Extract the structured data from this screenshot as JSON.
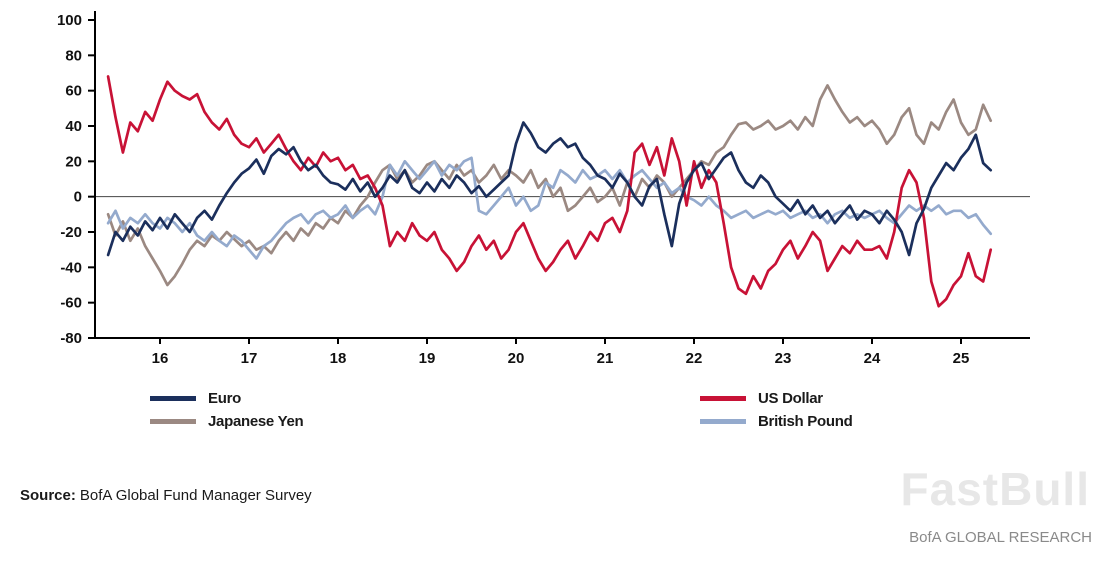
{
  "chart_data": {
    "type": "line",
    "title": "",
    "xlabel": "",
    "ylabel": "",
    "grid": false,
    "zero_line": true,
    "legend_position": "bottom",
    "x_start": 2015.4167,
    "x_step": 0.083333,
    "x_axis": {
      "tick_values": [
        2016,
        2017,
        2018,
        2019,
        2020,
        2021,
        2022,
        2023,
        2024,
        2025
      ],
      "tick_labels": [
        "16",
        "17",
        "18",
        "19",
        "20",
        "21",
        "22",
        "23",
        "24",
        "25"
      ]
    },
    "y_axis": {
      "min": -80,
      "max": 100,
      "ticks": [
        100,
        80,
        60,
        40,
        20,
        0,
        -20,
        -40,
        -60,
        -80
      ]
    },
    "series": [
      {
        "name": "Euro",
        "color": "#1b2f5c",
        "values": [
          -33,
          -20,
          -25,
          -17,
          -22,
          -14,
          -19,
          -12,
          -18,
          -10,
          -15,
          -20,
          -12,
          -8,
          -13,
          -5,
          2,
          8,
          13,
          16,
          21,
          13,
          23,
          27,
          24,
          28,
          20,
          15,
          18,
          12,
          8,
          7,
          4,
          10,
          3,
          8,
          0,
          5,
          12,
          8,
          15,
          5,
          2,
          8,
          3,
          10,
          5,
          12,
          8,
          2,
          6,
          0,
          4,
          8,
          12,
          30,
          42,
          36,
          28,
          25,
          30,
          33,
          28,
          30,
          22,
          18,
          12,
          10,
          5,
          13,
          8,
          0,
          -5,
          6,
          10,
          -10,
          -28,
          -4,
          8,
          15,
          19,
          10,
          16,
          22,
          25,
          15,
          8,
          5,
          12,
          8,
          0,
          -4,
          -8,
          -2,
          -10,
          -5,
          -12,
          -8,
          -15,
          -10,
          -5,
          -13,
          -8,
          -10,
          -15,
          -8,
          -13,
          -20,
          -33,
          -15,
          -7,
          5,
          12,
          19,
          15,
          22,
          27,
          35,
          19,
          15
        ]
      },
      {
        "name": "US Dollar",
        "color": "#c81236",
        "values": [
          68,
          45,
          25,
          42,
          37,
          48,
          43,
          55,
          65,
          60,
          57,
          55,
          58,
          48,
          42,
          38,
          44,
          35,
          30,
          28,
          33,
          25,
          30,
          35,
          27,
          20,
          15,
          22,
          17,
          25,
          20,
          22,
          15,
          18,
          10,
          12,
          5,
          -5,
          -28,
          -20,
          -25,
          -15,
          -22,
          -25,
          -20,
          -30,
          -35,
          -42,
          -37,
          -28,
          -22,
          -30,
          -25,
          -35,
          -30,
          -20,
          -15,
          -25,
          -35,
          -42,
          -37,
          -30,
          -25,
          -35,
          -28,
          -20,
          -25,
          -15,
          -12,
          -20,
          -8,
          25,
          30,
          18,
          28,
          12,
          33,
          20,
          -5,
          20,
          5,
          15,
          8,
          -15,
          -40,
          -52,
          -55,
          -45,
          -52,
          -42,
          -38,
          -30,
          -25,
          -35,
          -28,
          -20,
          -25,
          -42,
          -35,
          -28,
          -32,
          -25,
          -30,
          -30,
          -28,
          -35,
          -20,
          5,
          15,
          8,
          -12,
          -48,
          -62,
          -58,
          -50,
          -45,
          -32,
          -45,
          -48,
          -30
        ]
      },
      {
        "name": "Japanese Yen",
        "color": "#9b8982",
        "values": [
          -10,
          -22,
          -14,
          -25,
          -18,
          -28,
          -35,
          -42,
          -50,
          -45,
          -38,
          -30,
          -25,
          -28,
          -22,
          -25,
          -20,
          -24,
          -28,
          -25,
          -30,
          -28,
          -32,
          -25,
          -20,
          -25,
          -18,
          -22,
          -15,
          -18,
          -12,
          -15,
          -8,
          -12,
          -5,
          0,
          8,
          15,
          18,
          10,
          15,
          8,
          12,
          18,
          20,
          15,
          10,
          18,
          12,
          15,
          8,
          12,
          18,
          10,
          15,
          12,
          8,
          15,
          5,
          10,
          0,
          5,
          -8,
          -5,
          0,
          5,
          -3,
          0,
          5,
          -5,
          8,
          0,
          10,
          5,
          12,
          8,
          0,
          5,
          10,
          15,
          20,
          18,
          25,
          28,
          35,
          41,
          42,
          38,
          40,
          43,
          38,
          40,
          43,
          38,
          45,
          40,
          55,
          63,
          55,
          48,
          42,
          45,
          40,
          43,
          38,
          30,
          35,
          45,
          50,
          35,
          30,
          42,
          38,
          48,
          55,
          42,
          35,
          38,
          52,
          43
        ]
      },
      {
        "name": "British Pound",
        "color": "#94aacd",
        "values": [
          -15,
          -8,
          -18,
          -12,
          -15,
          -10,
          -15,
          -18,
          -12,
          -15,
          -20,
          -15,
          -22,
          -25,
          -20,
          -25,
          -28,
          -22,
          -25,
          -30,
          -35,
          -28,
          -25,
          -20,
          -15,
          -12,
          -10,
          -15,
          -10,
          -8,
          -12,
          -10,
          -5,
          -12,
          -8,
          -5,
          -10,
          0,
          18,
          12,
          20,
          15,
          10,
          15,
          20,
          12,
          18,
          15,
          20,
          22,
          -8,
          -10,
          -5,
          0,
          5,
          -5,
          0,
          -8,
          -5,
          8,
          5,
          15,
          12,
          8,
          15,
          10,
          12,
          15,
          10,
          15,
          8,
          12,
          15,
          10,
          5,
          8,
          2,
          5,
          0,
          -2,
          -5,
          0,
          -5,
          -8,
          -12,
          -10,
          -8,
          -12,
          -10,
          -8,
          -10,
          -8,
          -12,
          -10,
          -8,
          -12,
          -10,
          -15,
          -10,
          -8,
          -12,
          -10,
          -12,
          -10,
          -8,
          -12,
          -15,
          -10,
          -5,
          -8,
          -5,
          -8,
          -5,
          -10,
          -8,
          -8,
          -12,
          -10,
          -16,
          -21
        ]
      }
    ]
  },
  "legend": {
    "items": [
      "Euro",
      "US Dollar",
      "Japanese Yen",
      "British Pound"
    ]
  },
  "footer": {
    "source_label": "Source:",
    "source_text": "BofA Global Fund Manager Survey",
    "watermark": "FastBull",
    "research": "BofA GLOBAL RESEARCH"
  }
}
